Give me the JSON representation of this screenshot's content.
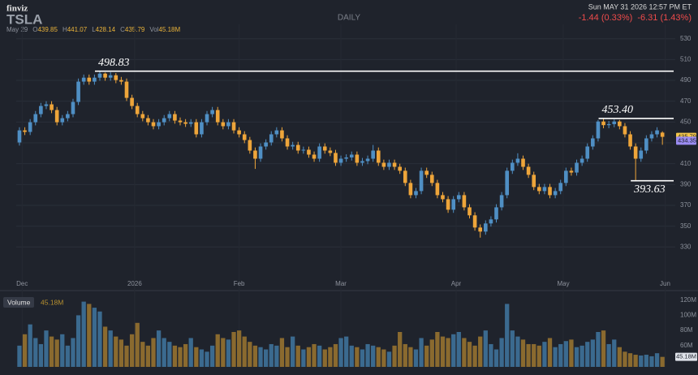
{
  "header": {
    "logo": "finviz",
    "ticker": "TSLA",
    "timeframe": "DAILY",
    "date": "May 29",
    "stats": [
      {
        "key": "O",
        "value": "439.85"
      },
      {
        "key": "H",
        "value": "441.07"
      },
      {
        "key": "L",
        "value": "428.14"
      },
      {
        "key": "C",
        "value": "435.79"
      },
      {
        "key": "Vol",
        "value": "45.18M"
      }
    ],
    "timestamp": "Sun MAY 31 2026 12:57 PM ET",
    "changes": [
      "-1.44 (0.33%)",
      "-6.31 (1.43%)"
    ]
  },
  "chart_data": {
    "type": "candlestick",
    "xlim": [
      -0.6,
      122.4
    ],
    "xticks": [
      {
        "value": 0.5,
        "label": "Dec"
      },
      {
        "value": 21.5,
        "label": "2026"
      },
      {
        "value": 41,
        "label": "Feb"
      },
      {
        "value": 60,
        "label": "Mar"
      },
      {
        "value": 81.5,
        "label": "Apr"
      },
      {
        "value": 101.5,
        "label": "May"
      },
      {
        "value": 120.5,
        "label": "Jun"
      }
    ],
    "ylim": [
      324,
      536
    ],
    "yticks": [
      330,
      350,
      370,
      390,
      410,
      430,
      450,
      470,
      490,
      510,
      530
    ],
    "up_color": "#4f8fc4",
    "down_color": "#eea53a",
    "volume_up_color": "#3b6a8f",
    "volume_down_color": "#8a6a2f",
    "open": [
      430.4,
      442.0,
      440.5,
      449.8,
      457.6,
      465.4,
      467.0,
      461.5,
      449.8,
      453.7,
      457.6,
      469.3,
      488.8,
      492.6,
      488.8,
      492.6,
      496.5,
      492.6,
      494.9,
      490.3,
      488.8,
      473.2,
      465.4,
      457.6,
      453.7,
      449.8,
      446.0,
      449.8,
      453.7,
      457.6,
      451.4,
      449.8,
      448.3,
      449.8,
      438.2,
      449.8,
      457.6,
      461.5,
      449.8,
      446.0,
      449.8,
      442.0,
      438.2,
      432.7,
      422.6,
      414.8,
      426.5,
      430.4,
      438.2,
      442.0,
      434.3,
      426.5,
      428.0,
      422.6,
      423.4,
      418.7,
      414.8,
      426.5,
      422.6,
      420.3,
      410.9,
      414.8,
      416.0,
      418.7,
      410.9,
      412.5,
      414.8,
      422.6,
      410.9,
      407.0,
      410.9,
      407.0,
      403.2,
      391.5,
      379.8,
      383.7,
      403.2,
      399.3,
      391.5,
      379.8,
      375.9,
      365.8,
      375.9,
      379.8,
      368.1,
      360.4,
      348.7,
      344.8,
      352.6,
      356.5,
      368.1,
      379.8,
      403.2,
      410.9,
      414.8,
      407.0,
      399.3,
      387.6,
      383.7,
      387.6,
      379.8,
      383.7,
      391.5,
      403.2,
      401.5,
      410.9,
      414.8,
      426.5,
      434.3,
      450.5,
      447.0,
      448.0,
      450.5,
      446.0,
      438.2,
      426.5,
      414.8,
      422.6,
      434.3,
      438.2,
      439.85
    ],
    "high": [
      445.0,
      445.0,
      452.8,
      460.6,
      468.4,
      470.0,
      470.0,
      464.5,
      456.7,
      460.6,
      472.3,
      491.8,
      495.6,
      495.6,
      495.6,
      498.83,
      497.5,
      497.9,
      497.0,
      493.3,
      491.8,
      476.2,
      468.4,
      460.6,
      456.7,
      452.8,
      452.8,
      456.7,
      460.6,
      460.6,
      454.4,
      452.8,
      452.8,
      452.8,
      452.8,
      460.6,
      464.5,
      464.5,
      452.8,
      452.8,
      452.8,
      445.0,
      441.2,
      435.7,
      425.6,
      429.5,
      433.4,
      441.2,
      445.0,
      445.0,
      437.3,
      431.0,
      431.0,
      426.4,
      426.4,
      421.7,
      429.5,
      429.5,
      425.6,
      423.3,
      417.8,
      419.0,
      421.7,
      421.7,
      415.5,
      417.8,
      428.0,
      425.6,
      413.9,
      413.9,
      413.9,
      410.0,
      406.2,
      394.5,
      386.7,
      406.2,
      406.2,
      402.3,
      394.5,
      382.8,
      378.9,
      378.9,
      382.8,
      382.8,
      371.1,
      363.4,
      351.7,
      355.6,
      359.5,
      371.1,
      382.8,
      406.2,
      413.9,
      420.0,
      417.8,
      410.0,
      402.3,
      390.6,
      390.6,
      390.6,
      386.7,
      394.5,
      406.2,
      406.2,
      413.9,
      417.8,
      429.5,
      437.3,
      452.0,
      453.4,
      451.0,
      452.5,
      452.0,
      449.0,
      441.2,
      429.5,
      425.6,
      437.3,
      441.2,
      445.0,
      441.07
    ],
    "low": [
      427.4,
      437.5,
      437.5,
      446.8,
      454.6,
      462.4,
      458.5,
      446.8,
      446.8,
      450.7,
      454.6,
      466.3,
      485.8,
      485.8,
      485.8,
      489.6,
      489.6,
      489.6,
      487.3,
      485.8,
      470.2,
      462.4,
      454.6,
      450.7,
      446.8,
      443.0,
      443.0,
      446.8,
      450.7,
      448.4,
      446.8,
      445.3,
      445.3,
      435.2,
      435.2,
      446.8,
      454.6,
      446.8,
      443.0,
      443.0,
      439.0,
      435.2,
      429.7,
      419.6,
      405.0,
      411.8,
      423.5,
      427.4,
      435.2,
      431.3,
      423.5,
      423.5,
      419.6,
      419.6,
      415.7,
      411.8,
      411.8,
      419.6,
      417.3,
      407.9,
      407.9,
      411.8,
      413.0,
      407.9,
      407.9,
      409.5,
      411.8,
      407.9,
      404.0,
      404.0,
      404.0,
      400.2,
      388.5,
      376.8,
      376.8,
      380.7,
      396.3,
      388.5,
      376.8,
      372.9,
      362.8,
      362.8,
      372.9,
      365.1,
      357.4,
      345.7,
      339.0,
      341.8,
      349.6,
      353.5,
      365.1,
      376.8,
      400.2,
      407.9,
      404.0,
      396.3,
      384.6,
      380.7,
      380.7,
      376.8,
      376.8,
      380.7,
      388.5,
      398.5,
      398.5,
      407.9,
      411.8,
      423.5,
      431.3,
      444.0,
      444.0,
      445.0,
      443.0,
      435.2,
      423.5,
      393.63,
      411.8,
      419.6,
      431.3,
      435.2,
      428.14
    ],
    "close": [
      442.0,
      440.5,
      449.8,
      457.6,
      465.4,
      467.0,
      461.5,
      449.8,
      453.7,
      457.6,
      469.3,
      488.8,
      492.6,
      488.8,
      492.6,
      496.5,
      492.6,
      494.9,
      490.3,
      488.8,
      473.2,
      465.4,
      457.6,
      453.7,
      449.8,
      446.0,
      449.8,
      453.7,
      457.6,
      451.4,
      449.8,
      448.3,
      449.8,
      438.2,
      449.8,
      457.6,
      461.5,
      449.8,
      446.0,
      449.8,
      442.0,
      438.2,
      432.7,
      422.6,
      414.8,
      426.5,
      430.4,
      438.2,
      442.0,
      434.3,
      426.5,
      428.0,
      422.6,
      423.4,
      418.7,
      414.8,
      426.5,
      422.6,
      420.3,
      410.9,
      414.8,
      416.0,
      418.7,
      410.9,
      412.5,
      414.8,
      422.6,
      410.9,
      407.0,
      410.9,
      407.0,
      403.2,
      391.5,
      379.8,
      383.7,
      403.2,
      399.3,
      391.5,
      379.8,
      375.9,
      365.8,
      375.9,
      379.8,
      368.1,
      360.4,
      348.7,
      344.8,
      352.6,
      356.5,
      368.1,
      379.8,
      403.2,
      410.9,
      414.8,
      407.0,
      399.3,
      387.6,
      383.7,
      387.6,
      379.8,
      383.7,
      391.5,
      403.2,
      401.5,
      410.9,
      414.8,
      426.5,
      434.3,
      450.5,
      447.0,
      448.0,
      450.5,
      446.0,
      438.2,
      426.5,
      414.8,
      422.6,
      434.3,
      438.2,
      442.0,
      435.79
    ],
    "volume": [
      60,
      75,
      88,
      70,
      62,
      80,
      72,
      68,
      75,
      60,
      70,
      100,
      118,
      115,
      110,
      105,
      85,
      80,
      72,
      68,
      60,
      75,
      90,
      65,
      60,
      70,
      80,
      70,
      65,
      60,
      58,
      62,
      70,
      58,
      55,
      52,
      60,
      75,
      70,
      68,
      78,
      80,
      72,
      65,
      60,
      58,
      55,
      62,
      60,
      70,
      58,
      72,
      60,
      55,
      58,
      62,
      60,
      55,
      58,
      62,
      70,
      72,
      60,
      58,
      55,
      62,
      60,
      58,
      55,
      52,
      60,
      78,
      62,
      58,
      55,
      70,
      60,
      68,
      78,
      72,
      70,
      75,
      78,
      70,
      65,
      60,
      72,
      80,
      62,
      55,
      70,
      115,
      80,
      72,
      68,
      62,
      62,
      60,
      65,
      70,
      58,
      62,
      66,
      68,
      58,
      60,
      65,
      68,
      78,
      80,
      62,
      68,
      58,
      52,
      50,
      48,
      47,
      48,
      46,
      50,
      45.18
    ],
    "volume_ylim": [
      32,
      124
    ],
    "volume_ticks": [
      {
        "value": 60,
        "label": "60M"
      },
      {
        "value": 80,
        "label": "80M"
      },
      {
        "value": 100,
        "label": "100M"
      },
      {
        "value": 120,
        "label": "120M"
      }
    ],
    "volume_title": "Volume",
    "volume_value_label": "45.18M",
    "price_badges": [
      {
        "value": 435.79,
        "color": "#f3c64a"
      },
      {
        "value": 434.35,
        "color": "#9b8cf2"
      }
    ],
    "annotations": [
      {
        "value": 498.83,
        "label": "498.83"
      },
      {
        "value": 453.4,
        "label": "453.40"
      },
      {
        "value": 393.63,
        "label": "393.63"
      }
    ]
  }
}
